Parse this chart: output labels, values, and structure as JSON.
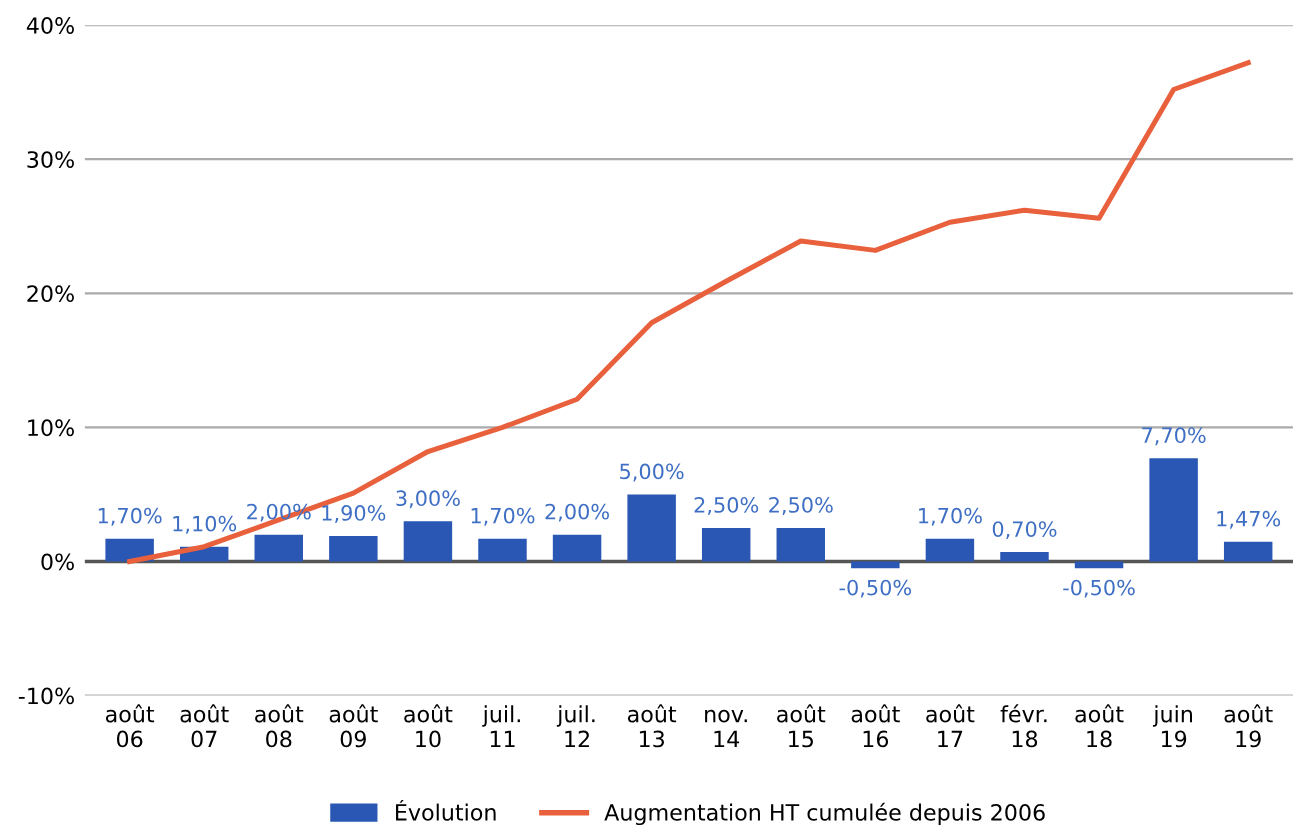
{
  "chart_data": {
    "type": "bar",
    "categories": [
      "août\n06",
      "août\n07",
      "août\n08",
      "août\n09",
      "août\n10",
      "juil.\n11",
      "juil.\n12",
      "août\n13",
      "nov.\n14",
      "août\n15",
      "août\n16",
      "août\n17",
      "févr.\n18",
      "août\n18",
      "juin\n19",
      "août\n19"
    ],
    "series": [
      {
        "name": "Évolution",
        "color": "#2a57b3",
        "values": [
          1.7,
          1.1,
          2.0,
          1.9,
          3.0,
          1.7,
          2.0,
          5.0,
          2.5,
          2.5,
          -0.5,
          1.7,
          0.7,
          -0.5,
          7.7,
          1.47
        ],
        "value_labels": [
          "1,70%",
          "1,10%",
          "2,00%",
          "1,90%",
          "3,00%",
          "1,70%",
          "2,00%",
          "5,00%",
          "2,50%",
          "2,50%",
          "-0,50%",
          "1,70%",
          "0,70%",
          "-0,50%",
          "7,70%",
          "1,47%"
        ]
      },
      {
        "name": "Augmentation HT cumulée depuis 2006",
        "type": "line",
        "color": "#e8603c",
        "values": [
          0,
          1.1,
          3.1,
          5.1,
          8.2,
          10.0,
          12.1,
          17.8,
          20.9,
          23.9,
          23.2,
          25.3,
          26.2,
          25.6,
          35.2,
          37.2
        ]
      }
    ],
    "ylim": [
      -10,
      40
    ],
    "yticks": [
      {
        "value": -10,
        "label": "-10%"
      },
      {
        "value": 0,
        "label": "0%"
      },
      {
        "value": 10,
        "label": "10%"
      },
      {
        "value": 20,
        "label": "20%"
      },
      {
        "value": 30,
        "label": "30%"
      },
      {
        "value": 40,
        "label": "40%"
      }
    ],
    "grid": "y",
    "legend": "bottom",
    "marker": "none",
    "line_style": "solid"
  }
}
